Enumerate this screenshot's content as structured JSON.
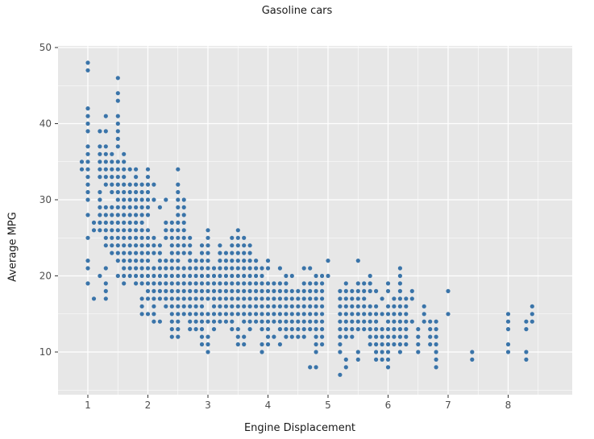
{
  "figure": {
    "title": "Gasoline cars",
    "background_color": "#ffffff",
    "panel_color": "#e7e7e7",
    "grid_color": "#ffffff",
    "tick_color": "#333333",
    "tick_label_color": "#4d4d4d",
    "marker_color": "#3a74a9"
  },
  "axes": {
    "x": {
      "label": "Engine Displacement",
      "tick_labels": [
        "1",
        "2",
        "3",
        "4",
        "5",
        "6",
        "7",
        "8"
      ],
      "ticks": [
        1,
        2,
        3,
        4,
        5,
        6,
        7,
        8
      ],
      "minor_ticks": [
        0.5,
        1.5,
        2.5,
        3.5,
        4.5,
        5.5,
        6.5,
        7.5,
        8.5
      ]
    },
    "y": {
      "label": "Average MPG",
      "tick_labels": [
        "10",
        "20",
        "30",
        "40",
        "50"
      ],
      "ticks": [
        10,
        20,
        30,
        40,
        50
      ],
      "minor_ticks": [
        5,
        15,
        25,
        35,
        45
      ]
    }
  },
  "chart_data": {
    "type": "scatter",
    "title": "Gasoline cars",
    "xlabel": "Engine Displacement",
    "ylabel": "Average MPG",
    "xlim": [
      0.5,
      9.05
    ],
    "ylim": [
      4.4,
      50.2
    ],
    "grid": true,
    "legend": false,
    "marker": {
      "shape": "circle",
      "radius_px": 2.6,
      "color": "#3a74a9"
    },
    "points_by_mpg": {
      "48": [
        1.0
      ],
      "47": [
        1.0
      ],
      "46": [
        1.5
      ],
      "44": [
        1.5
      ],
      "43": [
        1.5
      ],
      "42": [
        1.0
      ],
      "41": [
        1.0,
        1.3,
        1.5
      ],
      "40": [
        1.0,
        1.5
      ],
      "39": [
        1.0,
        1.2,
        1.3,
        1.5
      ],
      "38": [
        1.5
      ],
      "37": [
        1.0,
        1.2,
        1.3,
        1.5
      ],
      "36": [
        1.0,
        1.2,
        1.3,
        1.4,
        1.6
      ],
      "35": [
        0.9,
        1.0,
        1.2,
        1.3,
        1.4,
        1.5,
        1.6
      ],
      "34": [
        0.9,
        1.0,
        1.2,
        1.3,
        1.4,
        1.5,
        1.6,
        1.7,
        1.8,
        2.0,
        2.5
      ],
      "33": [
        1.0,
        1.2,
        1.3,
        1.4,
        1.5,
        1.6,
        1.8,
        2.0
      ],
      "32": [
        1.0,
        1.3,
        1.4,
        1.5,
        1.6,
        1.7,
        1.8,
        1.9,
        2.0,
        2.1,
        2.5
      ],
      "31": [
        1.0,
        1.2,
        1.4,
        1.5,
        1.6,
        1.7,
        1.8,
        1.9,
        2.0,
        2.5
      ],
      "30": [
        1.0,
        1.2,
        1.5,
        1.6,
        1.7,
        1.8,
        1.9,
        2.0,
        2.1,
        2.3,
        2.5,
        2.6
      ],
      "29": [
        1.2,
        1.3,
        1.4,
        1.5,
        1.6,
        1.7,
        1.8,
        1.9,
        2.0,
        2.2,
        2.5,
        2.6
      ],
      "28": [
        1.0,
        1.2,
        1.3,
        1.4,
        1.5,
        1.6,
        1.7,
        1.8,
        1.9,
        2.0,
        2.5,
        2.6
      ],
      "27": [
        1.1,
        1.2,
        1.3,
        1.4,
        1.5,
        1.6,
        1.7,
        1.8,
        1.9,
        2.3,
        2.4,
        2.5,
        2.6
      ],
      "26": [
        1.1,
        1.2,
        1.3,
        1.4,
        1.5,
        1.6,
        1.7,
        1.8,
        1.9,
        2.0,
        2.3,
        2.4,
        2.5,
        2.6,
        3.0,
        3.5
      ],
      "25": [
        1.0,
        1.3,
        1.4,
        1.5,
        1.6,
        1.7,
        1.8,
        1.9,
        2.0,
        2.1,
        2.3,
        2.4,
        2.5,
        2.6,
        2.7,
        3.0,
        3.4,
        3.5,
        3.6
      ],
      "24": [
        1.3,
        1.4,
        1.5,
        1.6,
        1.7,
        1.8,
        1.9,
        2.0,
        2.1,
        2.2,
        2.4,
        2.5,
        2.6,
        2.7,
        2.9,
        3.0,
        3.2,
        3.4,
        3.5,
        3.6,
        3.7
      ],
      "23": [
        1.4,
        1.5,
        1.6,
        1.7,
        1.8,
        1.9,
        2.0,
        2.1,
        2.2,
        2.4,
        2.5,
        2.6,
        2.7,
        2.9,
        3.0,
        3.2,
        3.3,
        3.4,
        3.5,
        3.6,
        3.7
      ],
      "22": [
        1.0,
        1.5,
        1.6,
        1.7,
        1.8,
        1.9,
        2.0,
        2.2,
        2.3,
        2.4,
        2.5,
        2.7,
        2.8,
        2.9,
        3.0,
        3.2,
        3.3,
        3.4,
        3.5,
        3.6,
        3.7,
        3.8,
        4.0,
        5.0,
        5.5
      ],
      "21": [
        1.0,
        1.3,
        1.6,
        1.7,
        1.8,
        1.9,
        2.0,
        2.1,
        2.2,
        2.3,
        2.4,
        2.5,
        2.6,
        2.7,
        2.8,
        2.9,
        3.0,
        3.1,
        3.2,
        3.3,
        3.4,
        3.5,
        3.6,
        3.7,
        3.8,
        3.9,
        4.0,
        4.2,
        4.6,
        4.7,
        6.2
      ],
      "20": [
        1.2,
        1.5,
        1.6,
        1.7,
        1.8,
        1.9,
        2.0,
        2.1,
        2.2,
        2.3,
        2.4,
        2.5,
        2.6,
        2.7,
        2.8,
        2.9,
        3.0,
        3.1,
        3.2,
        3.3,
        3.4,
        3.5,
        3.6,
        3.7,
        3.8,
        3.9,
        4.3,
        4.4,
        4.8,
        4.9,
        5.0,
        5.7,
        6.2
      ],
      "19": [
        1.0,
        1.3,
        1.6,
        1.8,
        1.9,
        2.0,
        2.1,
        2.2,
        2.3,
        2.4,
        2.5,
        2.6,
        2.7,
        2.8,
        2.9,
        3.0,
        3.1,
        3.2,
        3.3,
        3.4,
        3.5,
        3.6,
        3.7,
        3.8,
        3.9,
        4.0,
        4.1,
        4.2,
        4.3,
        4.6,
        4.7,
        4.8,
        4.9,
        5.3,
        5.5,
        5.6,
        5.7,
        6.0,
        6.2
      ],
      "18": [
        1.3,
        2.0,
        2.1,
        2.2,
        2.3,
        2.4,
        2.5,
        2.6,
        2.7,
        2.8,
        2.9,
        3.0,
        3.1,
        3.2,
        3.3,
        3.4,
        3.5,
        3.6,
        3.7,
        3.8,
        3.9,
        4.0,
        4.1,
        4.2,
        4.3,
        4.4,
        4.5,
        4.6,
        4.7,
        4.8,
        4.9,
        5.2,
        5.3,
        5.4,
        5.5,
        5.6,
        5.7,
        5.8,
        6.0,
        6.2,
        6.4,
        7.0
      ],
      "17": [
        1.1,
        1.3,
        1.9,
        2.0,
        2.1,
        2.2,
        2.3,
        2.4,
        2.5,
        2.6,
        2.7,
        2.8,
        2.9,
        3.0,
        3.1,
        3.2,
        3.3,
        3.4,
        3.5,
        3.6,
        3.7,
        3.8,
        3.9,
        4.0,
        4.1,
        4.2,
        4.3,
        4.4,
        4.5,
        4.6,
        4.7,
        4.8,
        4.9,
        5.2,
        5.3,
        5.4,
        5.5,
        5.6,
        5.9,
        6.1,
        6.2,
        6.3,
        6.4
      ],
      "16": [
        1.9,
        2.1,
        2.3,
        2.4,
        2.5,
        2.6,
        2.7,
        2.8,
        2.9,
        3.1,
        3.2,
        3.3,
        3.4,
        3.5,
        3.6,
        3.7,
        3.8,
        3.9,
        4.0,
        4.1,
        4.2,
        4.3,
        4.4,
        4.5,
        4.6,
        4.7,
        4.8,
        4.9,
        5.2,
        5.3,
        5.4,
        5.5,
        5.6,
        5.7,
        5.8,
        6.0,
        6.1,
        6.2,
        6.3,
        6.6,
        8.4
      ],
      "15": [
        1.9,
        2.0,
        2.1,
        2.4,
        2.5,
        2.6,
        2.7,
        2.8,
        2.9,
        3.0,
        3.1,
        3.2,
        3.3,
        3.4,
        3.5,
        3.6,
        3.7,
        3.8,
        3.9,
        4.0,
        4.1,
        4.2,
        4.3,
        4.4,
        4.5,
        4.6,
        4.7,
        4.8,
        4.9,
        5.2,
        5.3,
        5.4,
        5.5,
        5.6,
        5.7,
        5.8,
        5.9,
        6.0,
        6.1,
        6.2,
        6.3,
        6.6,
        7.0,
        8.0,
        8.4
      ],
      "14": [
        2.1,
        2.2,
        2.4,
        2.5,
        2.7,
        2.8,
        2.9,
        3.0,
        3.1,
        3.2,
        3.3,
        3.4,
        3.6,
        3.7,
        3.8,
        3.9,
        4.0,
        4.1,
        4.2,
        4.3,
        4.4,
        4.5,
        4.6,
        4.7,
        4.8,
        4.9,
        5.2,
        5.3,
        5.4,
        5.5,
        5.6,
        5.7,
        5.8,
        6.0,
        6.1,
        6.2,
        6.3,
        6.4,
        6.6,
        6.7,
        6.8,
        8.0,
        8.3,
        8.4
      ],
      "13": [
        2.4,
        2.5,
        2.7,
        2.8,
        2.9,
        3.1,
        3.4,
        3.5,
        3.7,
        3.9,
        4.0,
        4.2,
        4.3,
        4.4,
        4.5,
        4.6,
        4.7,
        4.8,
        4.9,
        5.2,
        5.3,
        5.4,
        5.5,
        5.6,
        5.7,
        5.8,
        5.9,
        6.0,
        6.1,
        6.2,
        6.3,
        6.5,
        6.7,
        6.8,
        8.0,
        8.3
      ],
      "12": [
        2.4,
        2.5,
        2.9,
        3.0,
        3.5,
        3.6,
        4.0,
        4.1,
        4.3,
        4.4,
        4.5,
        4.6,
        4.8,
        4.9,
        5.2,
        5.3,
        5.4,
        5.7,
        5.8,
        5.9,
        6.0,
        6.1,
        6.2,
        6.3,
        6.5,
        6.7,
        6.8
      ],
      "11": [
        2.9,
        3.0,
        3.5,
        3.6,
        3.9,
        4.0,
        4.2,
        4.8,
        4.9,
        5.2,
        5.7,
        5.8,
        5.9,
        6.0,
        6.1,
        6.2,
        6.3,
        6.5,
        6.7,
        6.8,
        8.0
      ],
      "10": [
        3.0,
        3.9,
        4.8,
        5.2,
        5.5,
        5.8,
        5.9,
        6.0,
        6.2,
        6.5,
        6.8,
        7.4,
        8.0,
        8.3
      ],
      "9": [
        5.3,
        5.5,
        5.8,
        5.9,
        6.0,
        6.8,
        7.4,
        8.3
      ],
      "8": [
        4.7,
        4.8,
        5.3,
        6.0,
        6.8
      ],
      "7": [
        5.2
      ]
    }
  }
}
